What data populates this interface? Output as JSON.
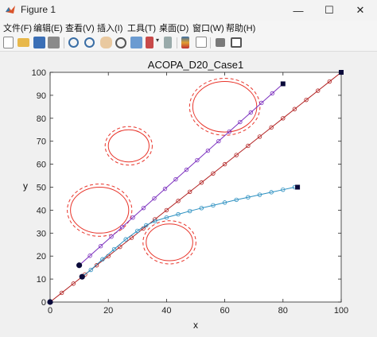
{
  "window": {
    "title": "Figure 1",
    "minimize": "—",
    "maximize": "☐",
    "close": "✕"
  },
  "menu": [
    "文件(F)",
    "编辑(E)",
    "查看(V)",
    "插入(I)",
    "工具(T)",
    "桌面(D)",
    "窗口(W)",
    "帮助(H)"
  ],
  "toolbar": [
    "new-figure-icon",
    "open-file-icon",
    "save-icon",
    "print-icon",
    "zoom-in-icon",
    "zoom-out-icon",
    "pan-icon",
    "rotate-3d-icon",
    "data-cursor-icon",
    "brush-icon",
    "brush-dropdown-icon",
    "link-plot-icon",
    "insert-colorbar-icon",
    "insert-legend-icon",
    "hide-plot-tools-icon",
    "show-plot-tools-icon"
  ],
  "chart_data": {
    "type": "line",
    "title": "ACOPA_D20_Case1",
    "xlabel": "x",
    "ylabel": "y",
    "xlim": [
      0,
      100
    ],
    "ylim": [
      0,
      100
    ],
    "xticks": [
      "0",
      "20",
      "40",
      "60",
      "80",
      "100"
    ],
    "yticks": [
      "0",
      "10",
      "20",
      "30",
      "40",
      "50",
      "60",
      "70",
      "80",
      "90",
      "100"
    ],
    "grid": false,
    "series": [
      {
        "color": "#b22222",
        "start": [
          0,
          0
        ],
        "end": [
          100,
          100
        ],
        "marker": "o",
        "points": 26
      },
      {
        "color": "#7b2fbe",
        "start": [
          10,
          16
        ],
        "end": [
          80,
          95
        ],
        "marker": "o",
        "points": 20
      },
      {
        "color": "#2a8fc0",
        "points_list": [
          [
            11,
            11
          ],
          [
            14,
            14
          ],
          [
            18,
            18.6
          ],
          [
            22,
            23
          ],
          [
            26,
            27.3
          ],
          [
            30,
            31
          ],
          [
            33,
            33.4
          ],
          [
            36,
            35.2
          ],
          [
            40,
            36.8
          ],
          [
            44,
            38.2
          ],
          [
            48,
            39.6
          ],
          [
            52,
            40.9
          ],
          [
            56,
            42.1
          ],
          [
            60,
            43.3
          ],
          [
            64,
            44.5
          ],
          [
            68,
            45.6
          ],
          [
            72,
            46.7
          ],
          [
            76,
            47.8
          ],
          [
            80,
            48.9
          ],
          [
            84,
            50
          ]
        ],
        "marker": "o"
      }
    ],
    "endpoints": [
      {
        "kind": "start",
        "x": 0,
        "y": 0
      },
      {
        "kind": "start",
        "x": 10,
        "y": 16
      },
      {
        "kind": "start",
        "x": 11,
        "y": 11
      },
      {
        "kind": "goal",
        "x": 100,
        "y": 100
      },
      {
        "kind": "goal",
        "x": 80,
        "y": 95
      },
      {
        "kind": "goal",
        "x": 85,
        "y": 50
      }
    ],
    "obstacles": [
      {
        "cx": 60,
        "cy": 85,
        "rx": 11,
        "ry": 11
      },
      {
        "cx": 27,
        "cy": 68,
        "rx": 7,
        "ry": 7
      },
      {
        "cx": 17,
        "cy": 40,
        "rx": 10,
        "ry": 10
      },
      {
        "cx": 41,
        "cy": 26,
        "rx": 8,
        "ry": 8
      }
    ],
    "obstacle_color": "#e8342a"
  }
}
